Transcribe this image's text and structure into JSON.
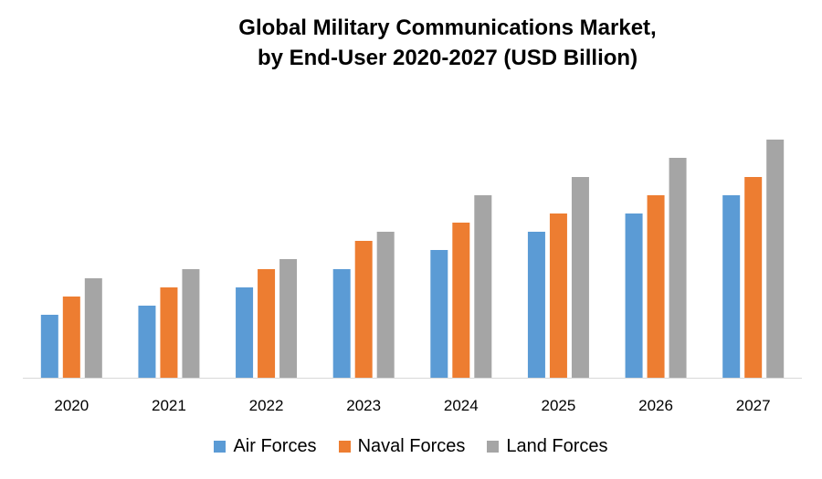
{
  "chart_data": {
    "type": "bar",
    "title_line1": "Global Military Communications Market,",
    "title_line2": "by End-User 2020-2027 (USD Billion)",
    "xlabel": "",
    "ylabel": "",
    "categories": [
      "2020",
      "2021",
      "2022",
      "2023",
      "2024",
      "2025",
      "2026",
      "2027"
    ],
    "series": [
      {
        "name": "Air Forces",
        "color": "#5B9BD5",
        "values": [
          6.9,
          7.9,
          9.9,
          11.9,
          14.0,
          16.0,
          18.0,
          20.0
        ]
      },
      {
        "name": "Naval Forces",
        "color": "#ED7D31",
        "values": [
          8.9,
          9.9,
          11.9,
          15.0,
          17.0,
          18.0,
          20.0,
          22.0
        ]
      },
      {
        "name": "Land Forces",
        "color": "#A5A5A5",
        "values": [
          10.9,
          11.9,
          13.0,
          16.0,
          20.0,
          22.0,
          24.1,
          26.1
        ]
      }
    ],
    "ylim": [
      0,
      30
    ],
    "y_axis_visible": false,
    "grid": false,
    "legend_position": "bottom"
  }
}
